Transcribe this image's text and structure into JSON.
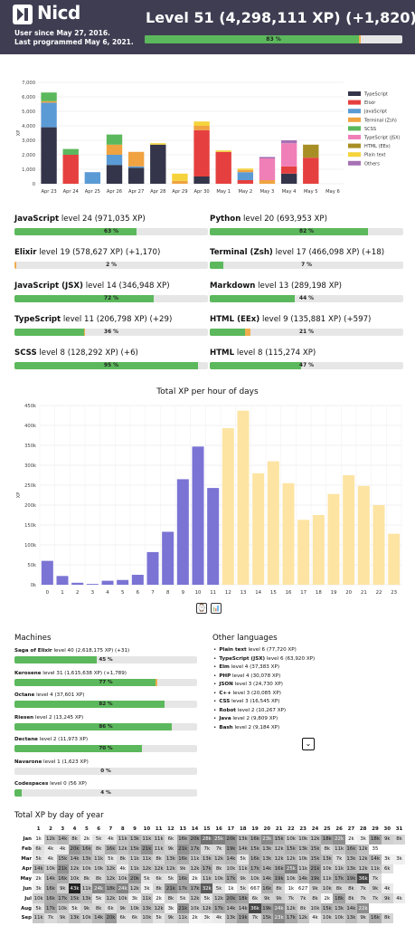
{
  "header": {
    "username": "Nicd",
    "user_since": "User since May 27, 2016.",
    "last_programmed": "Last programmed May 6, 2021.",
    "level_text": "Level 51 (4,298,111 XP) (+1,820)",
    "level_progress_label": "83 %",
    "level_progress": 0.83,
    "level_new_progress": 0.005
  },
  "daily_chart": {
    "chart_data": {
      "type": "bar",
      "stacked": true,
      "categories": [
        "Apr 23",
        "Apr 24",
        "Apr 25",
        "Apr 26",
        "Apr 27",
        "Apr 28",
        "Apr 29",
        "Apr 30",
        "May 1",
        "May 2",
        "May 3",
        "May 4",
        "May 5",
        "May 6"
      ],
      "ylabel": "XP",
      "ylim": [
        0,
        7000
      ],
      "yticks": [
        "0",
        "1,000",
        "2,000",
        "3,000",
        "4,000",
        "5,000",
        "6,000",
        "7,000"
      ],
      "legend_position": "right",
      "series": [
        {
          "name": "TypeScript",
          "color": "#34354a",
          "values": [
            3900,
            0,
            0,
            1300,
            1100,
            2700,
            0,
            500,
            0,
            0,
            0,
            700,
            0,
            0
          ]
        },
        {
          "name": "Elixir",
          "color": "#e5403f",
          "values": [
            0,
            2000,
            0,
            0,
            0,
            0,
            0,
            3200,
            2200,
            250,
            0,
            500,
            1800,
            0
          ]
        },
        {
          "name": "JavaScript",
          "color": "#5b9bd5",
          "values": [
            1700,
            0,
            800,
            700,
            100,
            0,
            0,
            0,
            0,
            550,
            0,
            0,
            0,
            0
          ]
        },
        {
          "name": "Terminal (Zsh)",
          "color": "#f0a340",
          "values": [
            100,
            0,
            0,
            700,
            1000,
            0,
            200,
            300,
            0,
            150,
            250,
            0,
            0,
            0
          ]
        },
        {
          "name": "SCSS",
          "color": "#5cb85c",
          "values": [
            600,
            400,
            0,
            700,
            0,
            0,
            0,
            0,
            0,
            0,
            0,
            0,
            0,
            0
          ]
        },
        {
          "name": "TypeScript (JSX)",
          "color": "#f07fb8",
          "values": [
            0,
            0,
            0,
            0,
            0,
            0,
            0,
            0,
            0,
            0,
            1500,
            1600,
            0,
            0
          ]
        },
        {
          "name": "HTML (EEx)",
          "color": "#a88f25",
          "values": [
            0,
            0,
            0,
            0,
            0,
            0,
            0,
            0,
            0,
            0,
            0,
            0,
            900,
            0
          ]
        },
        {
          "name": "Plain text",
          "color": "#f5d33b",
          "values": [
            0,
            0,
            0,
            0,
            0,
            100,
            500,
            300,
            100,
            100,
            0,
            0,
            0,
            0
          ]
        },
        {
          "name": "Others",
          "color": "#a772b5",
          "values": [
            0,
            0,
            0,
            0,
            0,
            0,
            0,
            0,
            0,
            0,
            100,
            200,
            0,
            0
          ]
        }
      ]
    }
  },
  "languages": [
    {
      "name": "JavaScript",
      "rest": " level 24 (971,035 XP)",
      "progress": 0.63,
      "label": "63 %",
      "newp": 0
    },
    {
      "name": "Python",
      "rest": " level 20 (693,953 XP)",
      "progress": 0.82,
      "label": "82 %",
      "newp": 0
    },
    {
      "name": "Elixir",
      "rest": " level 19 (578,627 XP) (+1,170)",
      "progress": 0,
      "label": "2 %",
      "newp": 0.01
    },
    {
      "name": "Terminal (Zsh)",
      "rest": " level 17 (466,098 XP) (+18)",
      "progress": 0.07,
      "label": "7 %",
      "newp": 0
    },
    {
      "name": "JavaScript (JSX)",
      "rest": " level 14 (346,948 XP)",
      "progress": 0.72,
      "label": "72 %",
      "newp": 0
    },
    {
      "name": "Markdown",
      "rest": " level 13 (289,198 XP)",
      "progress": 0.44,
      "label": "44 %",
      "newp": 0
    },
    {
      "name": "TypeScript",
      "rest": " level 11 (206,798 XP) (+29)",
      "progress": 0.36,
      "label": "36 %",
      "newp": 0.003
    },
    {
      "name": "HTML (EEx)",
      "rest": " level 9 (135,881 XP) (+597)",
      "progress": 0.18,
      "label": "21 %",
      "newp": 0.03
    },
    {
      "name": "SCSS",
      "rest": " level 8 (128,292 XP) (+6)",
      "progress": 0.95,
      "label": "95 %",
      "newp": 0
    },
    {
      "name": "HTML",
      "rest": " level 8 (115,274 XP)",
      "progress": 0.47,
      "label": "47 %",
      "newp": 0
    }
  ],
  "hourly_chart": {
    "title": "Total XP per hour of days",
    "chart_data": {
      "type": "bar",
      "title": "Total XP per hour of days",
      "ylabel": "XP",
      "categories": [
        "0",
        "1",
        "2",
        "3",
        "4",
        "5",
        "6",
        "7",
        "8",
        "9",
        "10",
        "11",
        "12",
        "13",
        "14",
        "15",
        "16",
        "17",
        "18",
        "19",
        "20",
        "21",
        "22",
        "23"
      ],
      "values": [
        60000,
        22000,
        5000,
        2000,
        10000,
        12000,
        25000,
        82000,
        133000,
        265000,
        347000,
        243000,
        393000,
        437000,
        280000,
        310000,
        255000,
        163000,
        175000,
        228000,
        275000,
        248000,
        200000,
        128000
      ],
      "colors": [
        "#7b74d4",
        "#7b74d4",
        "#7b74d4",
        "#7b74d4",
        "#7b74d4",
        "#7b74d4",
        "#7b74d4",
        "#7b74d4",
        "#7b74d4",
        "#7b74d4",
        "#7b74d4",
        "#7b74d4",
        "#fde4a3",
        "#fde4a3",
        "#fde4a3",
        "#fde4a3",
        "#fde4a3",
        "#fde4a3",
        "#fde4a3",
        "#fde4a3",
        "#fde4a3",
        "#fde4a3",
        "#fde4a3",
        "#fde4a3"
      ],
      "ylim": [
        0,
        450000
      ],
      "yticks": [
        "0k",
        "50k",
        "100k",
        "150k",
        "200k",
        "250k",
        "300k",
        "350k",
        "400k",
        "450k"
      ]
    },
    "btn_clock": "⌚",
    "btn_chart": "📊"
  },
  "machines": {
    "heading": "Machines",
    "items": [
      {
        "name": "Saga of Elixir",
        "rest": " level 40 (2,618,175 XP) (+31)",
        "progress": 0.45,
        "label": "45 %",
        "newp": 0
      },
      {
        "name": "Kerosene",
        "rest": " level 31 (1,615,638 XP) (+1,789)",
        "progress": 0.77,
        "label": "77 %",
        "newp": 0.01
      },
      {
        "name": "Octane",
        "rest": " level 4 (37,601 XP)",
        "progress": 0.82,
        "label": "82 %",
        "newp": 0
      },
      {
        "name": "Riesen",
        "rest": " level 2 (13,245 XP)",
        "progress": 0.86,
        "label": "86 %",
        "newp": 0
      },
      {
        "name": "Dectane",
        "rest": " level 2 (11,973 XP)",
        "progress": 0.7,
        "label": "70 %",
        "newp": 0
      },
      {
        "name": "Navarone",
        "rest": " level 1 (1,623 XP)",
        "progress": 0,
        "label": "0 %",
        "newp": 0
      },
      {
        "name": "Codespaces",
        "rest": " level 0 (56 XP)",
        "progress": 0.04,
        "label": "4 %",
        "newp": 0
      }
    ]
  },
  "other_languages": {
    "heading": "Other languages",
    "items": [
      {
        "name": "Plain text",
        "rest": " level 6 (77,720 XP)"
      },
      {
        "name": "TypeScript (JSX)",
        "rest": " level 6 (63,920 XP)"
      },
      {
        "name": "Elm",
        "rest": " level 4 (37,383 XP)"
      },
      {
        "name": "PHP",
        "rest": " level 4 (30,078 XP)"
      },
      {
        "name": "JSON",
        "rest": " level 3 (24,730 XP)"
      },
      {
        "name": "C++",
        "rest": " level 3 (20,085 XP)"
      },
      {
        "name": "CSS",
        "rest": " level 3 (16,545 XP)"
      },
      {
        "name": "Robot",
        "rest": " level 2 (10,267 XP)"
      },
      {
        "name": "Java",
        "rest": " level 2 (9,809 XP)"
      },
      {
        "name": "Bash",
        "rest": " level 2 (9,184 XP)"
      }
    ],
    "expand": "⌄"
  },
  "day_of_year": {
    "heading": "Total XP by day of year",
    "days": [
      "1",
      "2",
      "3",
      "4",
      "5",
      "6",
      "7",
      "8",
      "9",
      "10",
      "11",
      "12",
      "13",
      "14",
      "15",
      "16",
      "17",
      "18",
      "19",
      "20",
      "21",
      "22",
      "23",
      "24",
      "25",
      "26",
      "27",
      "28",
      "29",
      "30",
      "31"
    ],
    "rows": [
      {
        "month": "Jan",
        "cells": [
          "1k",
          "12k",
          "14k",
          "8k",
          "2k",
          "5k",
          "4k",
          "11k",
          "13k",
          "11k",
          "11k",
          "6k",
          "16k",
          "20k",
          "28k",
          "25k",
          "20k",
          "13k",
          "16k",
          "23k",
          "15k",
          "10k",
          "10k",
          "12k",
          "18k",
          "22k",
          "2k",
          "3k",
          "18k",
          "9k",
          "8k"
        ]
      },
      {
        "month": "Feb",
        "cells": [
          "6k",
          "4k",
          "4k",
          "20k",
          "16k",
          "8k",
          "16k",
          "12k",
          "15k",
          "21k",
          "11k",
          "9k",
          "21k",
          "17k",
          "7k",
          "7k",
          "19k",
          "14k",
          "15k",
          "13k",
          "12k",
          "15k",
          "13k",
          "15k",
          "8k",
          "11k",
          "16k",
          "12k",
          "35",
          "",
          ""
        ]
      },
      {
        "month": "Mar",
        "cells": [
          "5k",
          "4k",
          "15k",
          "14k",
          "13k",
          "11k",
          "5k",
          "8k",
          "11k",
          "11k",
          "8k",
          "13k",
          "16k",
          "11k",
          "13k",
          "12k",
          "14k",
          "5k",
          "16k",
          "13k",
          "12k",
          "12k",
          "10k",
          "15k",
          "13k",
          "7k",
          "13k",
          "12k",
          "14k",
          "3k",
          "3k"
        ]
      },
      {
        "month": "Apr",
        "cells": [
          "14k",
          "10k",
          "21k",
          "12k",
          "10k",
          "10k",
          "12k",
          "4k",
          "11k",
          "12k",
          "12k",
          "12k",
          "9k",
          "12k",
          "17k",
          "8k",
          "10k",
          "11k",
          "17k",
          "14k",
          "16k",
          "25k",
          "11k",
          "21k",
          "10k",
          "11k",
          "13k",
          "12k",
          "11k",
          "6k",
          ""
        ]
      },
      {
        "month": "May",
        "cells": [
          "2k",
          "14k",
          "16k",
          "10k",
          "8k",
          "8k",
          "12k",
          "10k",
          "20k",
          "5k",
          "6k",
          "5k",
          "16k",
          "2k",
          "11k",
          "10k",
          "17k",
          "9k",
          "10k",
          "14k",
          "19k",
          "10k",
          "14k",
          "19k",
          "11k",
          "17k",
          "19k",
          "36k",
          "7k",
          "",
          ""
        ]
      },
      {
        "month": "Jun",
        "cells": [
          "3k",
          "16k",
          "9k",
          "43k",
          "11k",
          "24k",
          "18k",
          "24k",
          "12k",
          "3k",
          "8k",
          "21k",
          "17k",
          "17k",
          "32k",
          "5k",
          "1k",
          "5k",
          "667",
          "16k",
          "8k",
          "1k",
          "627",
          "9k",
          "10k",
          "8k",
          "8k",
          "7k",
          "9k",
          "4k",
          ""
        ]
      },
      {
        "month": "Jul",
        "cells": [
          "10k",
          "16k",
          "17k",
          "15k",
          "13k",
          "5k",
          "12k",
          "10k",
          "3k",
          "11k",
          "2k",
          "8k",
          "5k",
          "12k",
          "5k",
          "12k",
          "20k",
          "18k",
          "6k",
          "9k",
          "9k",
          "7k",
          "7k",
          "8k",
          "2k",
          "18k",
          "8k",
          "7k",
          "7k",
          "9k",
          "4k"
        ]
      },
      {
        "month": "Aug",
        "cells": [
          "5k",
          "17k",
          "10k",
          "5k",
          "9k",
          "8k",
          "6k",
          "9k",
          "10k",
          "13k",
          "12k",
          "3k",
          "21k",
          "10k",
          "12k",
          "17k",
          "14k",
          "14k",
          "36k",
          "19k",
          "24k",
          "12k",
          "8k",
          "10k",
          "15k",
          "13k",
          "14k",
          "22k",
          "",
          "",
          ""
        ]
      },
      {
        "month": "Sep",
        "cells": [
          "11k",
          "7k",
          "9k",
          "13k",
          "10k",
          "14k",
          "20k",
          "6k",
          "6k",
          "10k",
          "5k",
          "9k",
          "11k",
          "2k",
          "3k",
          "4k",
          "13k",
          "19k",
          "7k",
          "15k",
          "23k",
          "17k",
          "12k",
          "4k",
          "10k",
          "10k",
          "13k",
          "9k",
          "16k",
          "8k",
          ""
        ]
      }
    ]
  }
}
